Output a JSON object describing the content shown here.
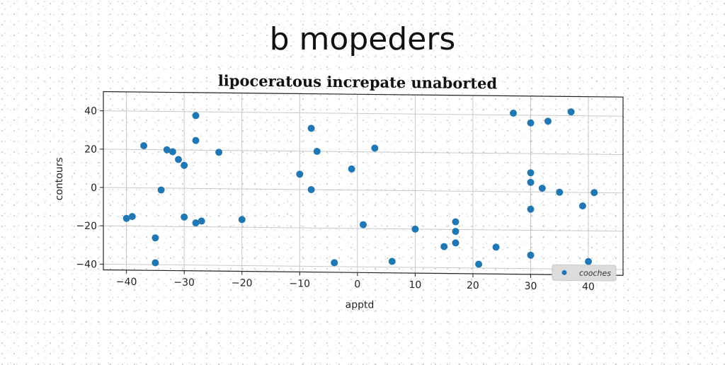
{
  "header": {
    "title": "b mopeders"
  },
  "chart_data": {
    "type": "scatter",
    "title": "lipoceratous increpate unaborted",
    "xlabel": "apptd",
    "ylabel": "contours",
    "xlim": [
      -44,
      46
    ],
    "ylim": [
      -43,
      50
    ],
    "xticks": [
      -40,
      -30,
      -20,
      -10,
      0,
      10,
      20,
      30,
      40
    ],
    "yticks": [
      -40,
      -20,
      0,
      20,
      40
    ],
    "xtick_labels": [
      "−40",
      "−30",
      "−20",
      "−10",
      "0",
      "10",
      "20",
      "30",
      "40"
    ],
    "ytick_labels": [
      "−40",
      "−20",
      "0",
      "20",
      "40"
    ],
    "grid": true,
    "legend_position": "bottom-right",
    "color": "#1f77b4",
    "series": [
      {
        "name": "cooches",
        "points": [
          [
            -40,
            -16
          ],
          [
            -39,
            -15
          ],
          [
            -37,
            22
          ],
          [
            -35,
            -26
          ],
          [
            -35,
            -39
          ],
          [
            -34,
            -1
          ],
          [
            -33,
            20
          ],
          [
            -32,
            19
          ],
          [
            -31,
            15
          ],
          [
            -30,
            12
          ],
          [
            -30,
            -15
          ],
          [
            -28,
            38
          ],
          [
            -28,
            25
          ],
          [
            -28,
            -18
          ],
          [
            -27,
            -17
          ],
          [
            -24,
            19
          ],
          [
            -20,
            -16
          ],
          [
            -10,
            8
          ],
          [
            -8,
            32
          ],
          [
            -8,
            0
          ],
          [
            -7,
            20
          ],
          [
            -4,
            -38
          ],
          [
            -1,
            11
          ],
          [
            1,
            -18
          ],
          [
            3,
            22
          ],
          [
            6,
            -37
          ],
          [
            10,
            -20
          ],
          [
            15,
            -29
          ],
          [
            17,
            -16
          ],
          [
            17,
            -21
          ],
          [
            17,
            -27
          ],
          [
            21,
            -38
          ],
          [
            24,
            -29
          ],
          [
            27,
            41
          ],
          [
            30,
            36
          ],
          [
            30,
            10
          ],
          [
            30,
            5
          ],
          [
            30,
            -9
          ],
          [
            30,
            -33
          ],
          [
            32,
            2
          ],
          [
            33,
            37
          ],
          [
            35,
            0
          ],
          [
            37,
            42
          ],
          [
            39,
            -7
          ],
          [
            40,
            -36
          ],
          [
            41,
            0
          ]
        ]
      }
    ]
  }
}
